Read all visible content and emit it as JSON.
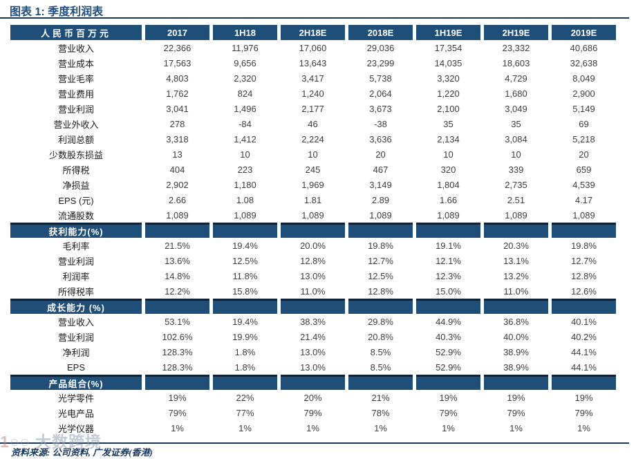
{
  "title": "图表 1: 季度利润表",
  "colors": {
    "navy_band": "#1f4e79",
    "rule_line": "#17375e",
    "header_text": "#ffffff",
    "data_text": "#3d3d3d",
    "watermark_gray": "#9aa6b4"
  },
  "table": {
    "unit_header": "人民币百万元",
    "columns": [
      "2017",
      "1H18",
      "2H18E",
      "2018E",
      "1H19E",
      "2H19E",
      "2019E"
    ],
    "sections": [
      {
        "header": null,
        "rows": [
          {
            "label": "营业收入",
            "values": [
              "22,366",
              "11,976",
              "17,060",
              "29,036",
              "17,354",
              "23,332",
              "40,686"
            ]
          },
          {
            "label": "营业成本",
            "values": [
              "17,563",
              "9,656",
              "13,643",
              "23,299",
              "14,035",
              "18,603",
              "32,638"
            ]
          },
          {
            "label": "营业毛率",
            "values": [
              "4,803",
              "2,320",
              "3,417",
              "5,738",
              "3,320",
              "4,729",
              "8,049"
            ]
          },
          {
            "label": "营业费用",
            "values": [
              "1,762",
              "824",
              "1,240",
              "2,064",
              "1,220",
              "1,680",
              "2,900"
            ]
          },
          {
            "label": "营业利润",
            "values": [
              "3,041",
              "1,496",
              "2,177",
              "3,673",
              "2,100",
              "3,049",
              "5,149"
            ]
          },
          {
            "label": "营业外收入",
            "values": [
              "278",
              "-84",
              "46",
              "-38",
              "35",
              "35",
              "69"
            ]
          },
          {
            "label": "利润总额",
            "values": [
              "3,318",
              "1,412",
              "2,224",
              "3,636",
              "2,134",
              "3,084",
              "5,218"
            ]
          },
          {
            "label": "少数股东损益",
            "values": [
              "13",
              "10",
              "10",
              "20",
              "10",
              "10",
              "20"
            ]
          },
          {
            "label": "所得税",
            "values": [
              "404",
              "223",
              "245",
              "467",
              "320",
              "339",
              "659"
            ]
          },
          {
            "label": "净损益",
            "values": [
              "2,902",
              "1,180",
              "1,969",
              "3,149",
              "1,804",
              "2,735",
              "4,539"
            ]
          },
          {
            "label": "EPS (元)",
            "values": [
              "2.66",
              "1.08",
              "1.81",
              "2.89",
              "1.66",
              "2.51",
              "4.17"
            ]
          },
          {
            "label": "流通股数",
            "values": [
              "1,089",
              "1,089",
              "1,089",
              "1,089",
              "1,089",
              "1,089",
              "1,089"
            ]
          }
        ]
      },
      {
        "header": "获利能力(%)",
        "rows": [
          {
            "label": "毛利率",
            "values": [
              "21.5%",
              "19.4%",
              "20.0%",
              "19.8%",
              "19.1%",
              "20.3%",
              "19.8%"
            ]
          },
          {
            "label": "营业利润",
            "values": [
              "13.6%",
              "12.5%",
              "12.8%",
              "12.7%",
              "12.1%",
              "13.1%",
              "12.7%"
            ]
          },
          {
            "label": "利润率",
            "values": [
              "14.8%",
              "11.8%",
              "13.0%",
              "12.5%",
              "12.3%",
              "13.2%",
              "12.8%"
            ]
          },
          {
            "label": "所得税率",
            "values": [
              "12.2%",
              "15.8%",
              "11.0%",
              "12.8%",
              "15.0%",
              "11.0%",
              "12.6%"
            ]
          }
        ]
      },
      {
        "header": "成长能力 (%)",
        "rows": [
          {
            "label": "营业收入",
            "values": [
              "53.1%",
              "19.4%",
              "38.3%",
              "29.8%",
              "44.9%",
              "36.8%",
              "40.1%"
            ]
          },
          {
            "label": "营业利润",
            "values": [
              "102.6%",
              "19.9%",
              "21.4%",
              "20.8%",
              "40.3%",
              "40.0%",
              "40.2%"
            ]
          },
          {
            "label": "净利润",
            "values": [
              "128.3%",
              "1.8%",
              "13.0%",
              "8.5%",
              "52.9%",
              "38.9%",
              "44.1%"
            ]
          },
          {
            "label": "EPS",
            "values": [
              "128.3%",
              "1.8%",
              "13.0%",
              "8.5%",
              "52.9%",
              "38.9%",
              "44.1%"
            ]
          }
        ]
      },
      {
        "header": "产品组合(%)",
        "rows": [
          {
            "label": "光学零件",
            "values": [
              "19%",
              "22%",
              "20%",
              "21%",
              "19%",
              "19%",
              "19%"
            ]
          },
          {
            "label": "光电产品",
            "values": [
              "79%",
              "77%",
              "79%",
              "78%",
              "79%",
              "79%",
              "79%"
            ]
          },
          {
            "label": "光学仪器",
            "values": [
              "1%",
              "1%",
              "1%",
              "1%",
              "1%",
              "1%",
              "1%"
            ]
          }
        ]
      }
    ]
  },
  "footer": {
    "source": "资料来源: 公司资料, 广发证券(香港)"
  },
  "watermark": {
    "logo": "1",
    "rings": "○○",
    "text": "大数跨境"
  }
}
